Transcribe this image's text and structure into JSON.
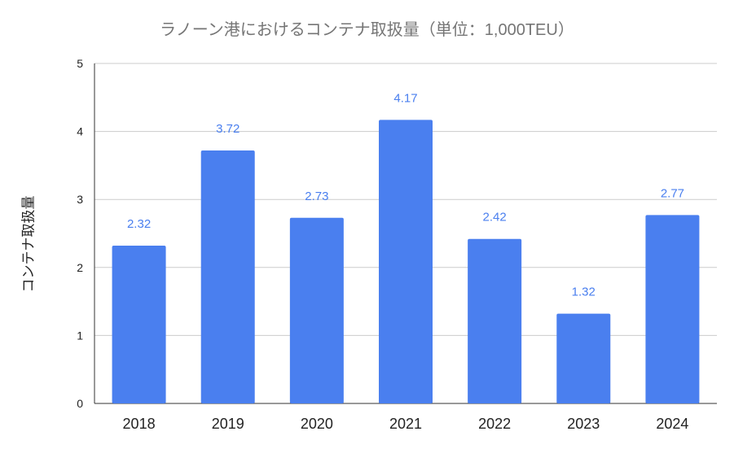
{
  "chart_data": {
    "type": "bar",
    "title": "ラノーン港におけるコンテナ取扱量（単位：1,000TEU）",
    "ylabel": "コンテナ取扱量",
    "xlabel": "",
    "categories": [
      "2018",
      "2019",
      "2020",
      "2021",
      "2022",
      "2023",
      "2024"
    ],
    "values": [
      2.32,
      3.72,
      2.73,
      4.17,
      2.42,
      1.32,
      2.77
    ],
    "value_labels": [
      "2.32",
      "3.72",
      "2.73",
      "4.17",
      "2.42",
      "1.32",
      "2.77"
    ],
    "ylim": [
      0,
      5
    ],
    "yticks": [
      "0",
      "1",
      "2",
      "3",
      "4",
      "5"
    ],
    "grid": true,
    "legend": "none",
    "bar_color": "#4a7fef",
    "label_color": "#4a7fef"
  }
}
